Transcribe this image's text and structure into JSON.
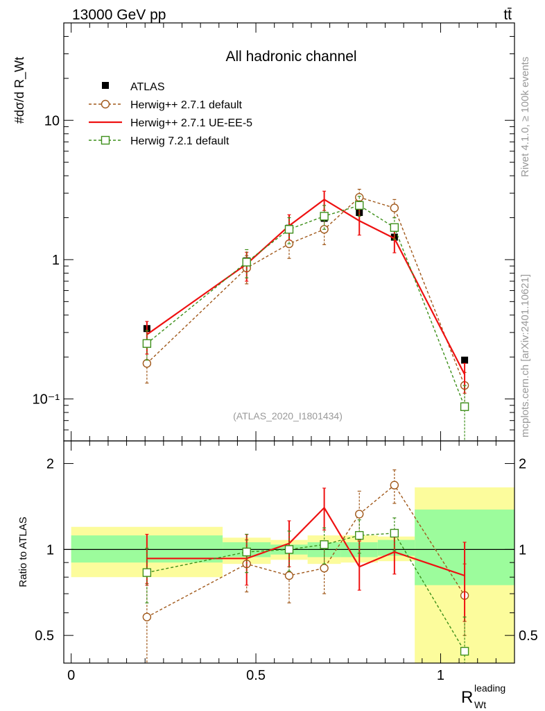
{
  "header": {
    "energy_label": "13000 GeV pp",
    "process_label": "tt̄"
  },
  "side_labels": {
    "rivet": "Rivet 4.1.0, ≥ 100k events",
    "mcplots": "mcplots.cern.ch [arXiv:2401.10621]"
  },
  "chart_data": {
    "type": "line",
    "title": "All hadronic channel",
    "analysis_id": "(ATLAS_2020_I1801434)",
    "ylabel_main": "#dσ/d R_Wt",
    "ylabel_ratio": "Ratio to ATLAS",
    "xlabel": "R",
    "xlabel_sub": "Wt",
    "xlabel_sup": "leading",
    "xlim": [
      -0.02,
      1.2
    ],
    "ylim_main": [
      0.05,
      50
    ],
    "ylim_ratio": [
      0.4,
      2.4
    ],
    "x_ticks": [
      "0",
      "0.5",
      "1"
    ],
    "x_tick_values": [
      0,
      0.5,
      1
    ],
    "y_ticks_main": [
      "10⁻¹",
      "1",
      "10"
    ],
    "y_tick_values_main": [
      0.1,
      1,
      10
    ],
    "y_ticks_ratio": [
      "0.5",
      "1",
      "2"
    ],
    "y_tick_values_ratio": [
      0.5,
      1,
      2
    ],
    "bins": [
      {
        "lo": 0.0,
        "hi": 0.41,
        "x": 0.205,
        "y": 0.32,
        "band_green": [
          0.9,
          1.12
        ],
        "band_yellow": [
          0.8,
          1.2
        ]
      },
      {
        "lo": 0.41,
        "hi": 0.54,
        "x": 0.475,
        "y": 0.98,
        "band_green": [
          0.94,
          1.06
        ],
        "band_yellow": [
          0.89,
          1.1
        ]
      },
      {
        "lo": 0.54,
        "hi": 0.64,
        "x": 0.59,
        "y": 1.68,
        "band_green": [
          0.96,
          1.04
        ],
        "band_yellow": [
          0.92,
          1.08
        ]
      },
      {
        "lo": 0.64,
        "hi": 0.73,
        "x": 0.685,
        "y": 1.98,
        "band_green": [
          0.94,
          1.06
        ],
        "band_yellow": [
          0.89,
          1.12
        ]
      },
      {
        "lo": 0.73,
        "hi": 0.83,
        "x": 0.78,
        "y": 2.18,
        "band_green": [
          0.94,
          1.06
        ],
        "band_yellow": [
          0.9,
          1.12
        ]
      },
      {
        "lo": 0.83,
        "hi": 0.93,
        "x": 0.875,
        "y": 1.45,
        "band_green": [
          0.95,
          1.08
        ],
        "band_yellow": [
          0.91,
          1.11
        ]
      },
      {
        "lo": 0.93,
        "hi": 1.2,
        "x": 1.065,
        "y": 0.19,
        "band_green": [
          0.75,
          1.38
        ],
        "band_yellow": [
          0.36,
          1.65
        ]
      }
    ],
    "series": [
      {
        "name": "ATLAS",
        "style": "data",
        "color": "#000000",
        "x": [
          0.205,
          0.475,
          0.59,
          0.685,
          0.78,
          0.875,
          1.065
        ],
        "values": [
          0.32,
          0.98,
          1.68,
          1.98,
          2.18,
          1.45,
          0.19
        ]
      },
      {
        "name": "Herwig++ 2.7.1 default",
        "style": "circle-dashed",
        "color": "#a0581a",
        "x": [
          0.205,
          0.475,
          0.59,
          0.685,
          0.78,
          0.875,
          1.065
        ],
        "values": [
          0.18,
          0.87,
          1.3,
          1.65,
          2.8,
          2.35,
          0.125
        ],
        "err_low": [
          0.13,
          0.67,
          1.02,
          1.28,
          2.35,
          2.0,
          0.09
        ],
        "err_high": [
          0.24,
          1.07,
          1.6,
          2.05,
          3.2,
          2.7,
          0.155
        ],
        "ratio": [
          0.58,
          0.89,
          0.81,
          0.86,
          1.33,
          1.68,
          0.69
        ],
        "ratio_low": [
          0.38,
          0.71,
          0.65,
          0.7,
          1.08,
          1.45,
          0.5
        ],
        "ratio_high": [
          0.76,
          1.08,
          0.99,
          1.05,
          1.6,
          1.9,
          0.89
        ]
      },
      {
        "name": "Herwig++ 2.7.1 UE-EE-5",
        "style": "solid",
        "color": "#ee1111",
        "x": [
          0.205,
          0.475,
          0.59,
          0.685,
          0.78,
          0.875,
          1.065
        ],
        "values": [
          0.29,
          0.93,
          1.75,
          2.7,
          1.9,
          1.42,
          0.15
        ],
        "err_low": [
          0.21,
          0.7,
          1.38,
          2.25,
          1.5,
          1.12,
          0.11
        ],
        "err_high": [
          0.36,
          1.13,
          2.1,
          3.1,
          2.3,
          1.7,
          0.18
        ],
        "ratio": [
          0.93,
          0.93,
          1.05,
          1.4,
          0.87,
          0.98,
          0.81
        ],
        "ratio_low": [
          0.75,
          0.75,
          0.87,
          1.17,
          0.72,
          0.82,
          0.56
        ],
        "ratio_high": [
          1.13,
          1.13,
          1.26,
          1.64,
          1.07,
          1.15,
          1.06
        ]
      },
      {
        "name": "Herwig 7.2.1 default",
        "style": "square-dashed",
        "color": "#3d8f1a",
        "x": [
          0.205,
          0.475,
          0.59,
          0.685,
          0.78,
          0.875,
          1.065
        ],
        "values": [
          0.25,
          0.96,
          1.65,
          2.05,
          2.45,
          1.7,
          0.088
        ],
        "err_low": [
          0.19,
          0.74,
          1.3,
          1.65,
          2.05,
          1.4,
          0.048
        ],
        "err_high": [
          0.31,
          1.18,
          2.0,
          2.45,
          2.85,
          2.0,
          0.125
        ],
        "ratio": [
          0.83,
          0.98,
          1.0,
          1.04,
          1.12,
          1.14,
          0.44
        ],
        "ratio_low": [
          0.65,
          0.83,
          0.84,
          0.89,
          0.97,
          0.99,
          0.3
        ],
        "ratio_high": [
          1.01,
          1.13,
          1.16,
          1.19,
          1.27,
          1.29,
          0.58
        ]
      }
    ],
    "data_err_low": [
      0.29,
      0.9,
      1.58,
      1.88,
      2.06,
      1.38,
      0.18
    ],
    "data_err_high": [
      0.35,
      1.06,
      1.78,
      2.08,
      2.3,
      1.52,
      0.2
    ],
    "band_colors": {
      "green": "#9cfc9c",
      "yellow": "#fcfc9c"
    }
  }
}
